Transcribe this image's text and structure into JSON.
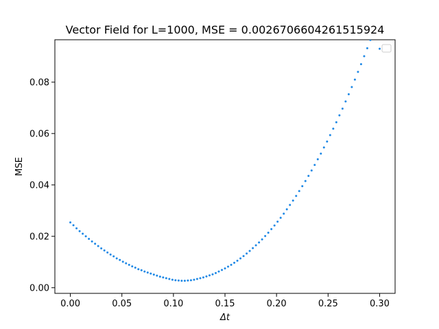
{
  "chart_data": {
    "type": "scatter",
    "title": "Vector Field for L=1000, MSE = 0.0026706604261515924",
    "xlabel": "Δt",
    "ylabel": "MSE",
    "xlim": [
      -0.015,
      0.315
    ],
    "ylim": [
      -0.0022,
      0.0965
    ],
    "xticks": [
      0.0,
      0.05,
      0.1,
      0.15,
      0.2,
      0.25,
      0.3
    ],
    "xtick_labels": [
      "0.00",
      "0.05",
      "0.10",
      "0.15",
      "0.20",
      "0.25",
      "0.30"
    ],
    "yticks": [
      0.0,
      0.02,
      0.04,
      0.06,
      0.08
    ],
    "ytick_labels": [
      "0.00",
      "0.02",
      "0.04",
      "0.06",
      "0.08"
    ],
    "grid": false,
    "legend": "top-right",
    "marker_color": "#1e88e5",
    "series": [
      {
        "x": [
          0.0,
          0.003,
          0.006,
          0.009,
          0.012,
          0.015,
          0.018,
          0.021,
          0.024,
          0.027,
          0.03,
          0.033,
          0.036,
          0.039,
          0.042,
          0.045,
          0.048,
          0.051,
          0.054,
          0.057,
          0.06,
          0.063,
          0.066,
          0.069,
          0.072,
          0.075,
          0.078,
          0.081,
          0.084,
          0.087,
          0.09,
          0.093,
          0.096,
          0.099,
          0.102,
          0.105,
          0.108,
          0.111,
          0.114,
          0.117,
          0.12,
          0.123,
          0.126,
          0.129,
          0.132,
          0.135,
          0.138,
          0.141,
          0.144,
          0.147,
          0.15,
          0.153,
          0.156,
          0.159,
          0.162,
          0.165,
          0.168,
          0.171,
          0.174,
          0.177,
          0.18,
          0.183,
          0.186,
          0.189,
          0.192,
          0.195,
          0.198,
          0.201,
          0.204,
          0.207,
          0.21,
          0.213,
          0.216,
          0.219,
          0.222,
          0.225,
          0.228,
          0.231,
          0.234,
          0.237,
          0.24,
          0.243,
          0.246,
          0.249,
          0.252,
          0.255,
          0.258,
          0.261,
          0.264,
          0.267,
          0.27,
          0.273,
          0.276,
          0.279,
          0.282,
          0.285,
          0.288,
          0.291,
          0.294,
          0.297,
          0.3
        ],
        "y": [
          0.0254,
          0.0243,
          0.0231,
          0.022,
          0.021,
          0.02,
          0.019,
          0.018,
          0.0171,
          0.0162,
          0.0153,
          0.0145,
          0.0137,
          0.0129,
          0.0122,
          0.0114,
          0.0108,
          0.0101,
          0.0095,
          0.0089,
          0.0083,
          0.0078,
          0.0072,
          0.0068,
          0.0063,
          0.0059,
          0.0055,
          0.0051,
          0.0047,
          0.0043,
          0.004,
          0.0037,
          0.0034,
          0.0031,
          0.0029,
          0.0028,
          0.0027,
          0.0027,
          0.0028,
          0.0029,
          0.0031,
          0.0034,
          0.0037,
          0.004,
          0.0044,
          0.0048,
          0.0052,
          0.0057,
          0.0063,
          0.0069,
          0.0075,
          0.0082,
          0.0089,
          0.0097,
          0.0105,
          0.0114,
          0.0123,
          0.0133,
          0.0143,
          0.0154,
          0.0165,
          0.0176,
          0.0188,
          0.0201,
          0.0214,
          0.0228,
          0.0242,
          0.0257,
          0.0272,
          0.0288,
          0.0305,
          0.0322,
          0.0339,
          0.0357,
          0.0376,
          0.0395,
          0.0415,
          0.0435,
          0.0456,
          0.0478,
          0.05,
          0.0522,
          0.0546,
          0.0569,
          0.0594,
          0.0619,
          0.0644,
          0.0671,
          0.0697,
          0.0725,
          0.0753,
          0.0781,
          0.081,
          0.084,
          0.087,
          0.0901,
          0.0932,
          0.0964,
          0.0997,
          0.103,
          0.093
        ]
      }
    ]
  }
}
